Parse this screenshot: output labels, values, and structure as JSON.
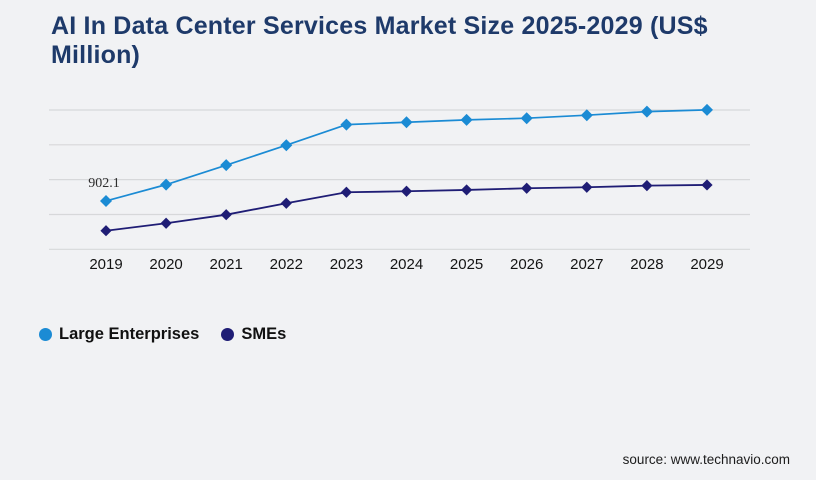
{
  "header": {
    "title": "AI In Data Center Services Market Size 2025-2029 (US$ Million)"
  },
  "footer": {
    "source": "source: www.technavio.com"
  },
  "colors": {
    "background": "#f1f2f4",
    "title": "#1e3a6a",
    "gridline": "#d7d8da",
    "axis_text": "#141414",
    "legend_text": "#111111",
    "annotation_text": "#2e2e2e",
    "source_text": "#1c1c1c",
    "large_enterprises": "#1b8bd4",
    "smes": "#1f1d75"
  },
  "chart_data": {
    "type": "line",
    "title": "AI In Data Center Services Market Size 2025-2029 (US$ Million)",
    "categories": [
      "2019",
      "2020",
      "2021",
      "2022",
      "2023",
      "2024",
      "2025",
      "2026",
      "2027",
      "2028",
      "2029"
    ],
    "series": [
      {
        "name": "Large Enterprises",
        "color": "#1b8bd4",
        "marker": "diamond",
        "values": [
          902.1,
          1207,
          1570,
          1943,
          2327,
          2372,
          2415,
          2447,
          2503,
          2570,
          2602
        ]
      },
      {
        "name": "SMEs",
        "color": "#1f1d75",
        "marker": "diamond",
        "values": [
          347,
          486,
          646,
          859,
          1065,
          1083,
          1108,
          1139,
          1158,
          1188,
          1201
        ]
      }
    ],
    "annotations": [
      {
        "text": "902.1",
        "series_index": 0,
        "point_index": 0
      }
    ],
    "ylim": [
      0,
      2600
    ],
    "grid": "horizontal-only",
    "gridline_count": 5,
    "y_axis_labels_visible": false,
    "legend_position": "bottom-left"
  }
}
